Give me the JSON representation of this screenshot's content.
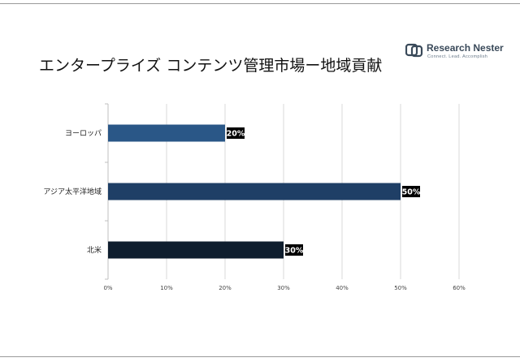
{
  "title": "エンタープライズ コンテンツ管理市場ー地域貢献",
  "logo": {
    "name": "Research Nester",
    "tagline": "Connect. Lead. Accomplish"
  },
  "colors": {
    "europe": "#2a5787",
    "asia": "#1f3f66",
    "north_america": "#0f1e2e",
    "label_bg": "#000000"
  },
  "chart_data": {
    "type": "bar",
    "orientation": "horizontal",
    "categories": [
      "ヨーロッパ",
      "アジア太平洋地域",
      "北米"
    ],
    "values": [
      20,
      50,
      30
    ],
    "value_labels": [
      "20%",
      "50%",
      "30%"
    ],
    "xlim": [
      0,
      60
    ],
    "xticks": [
      0,
      10,
      20,
      30,
      40,
      50,
      60
    ],
    "xtick_labels": [
      "0%",
      "10%",
      "20%",
      "30%",
      "40%",
      "50%",
      "60%"
    ],
    "xlabel": "",
    "ylabel": "",
    "grid": true,
    "legend": "none"
  }
}
